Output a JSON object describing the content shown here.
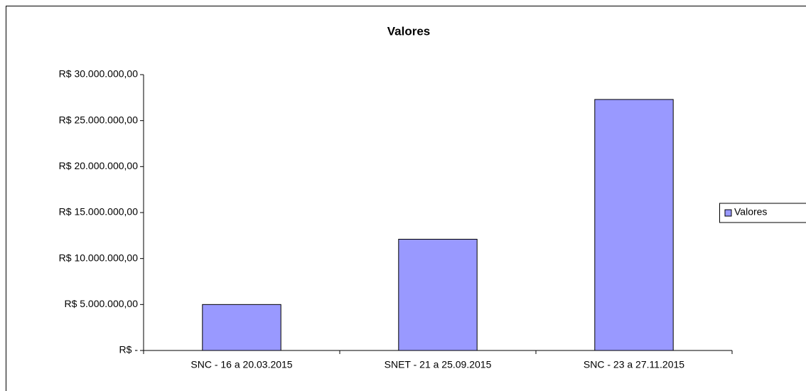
{
  "chart_data": {
    "type": "bar",
    "title": "Valores",
    "categories": [
      "SNC - 16 a 20.03.2015",
      "SNET - 21 a 25.09.2015",
      "SNC - 23 a 27.11.2015"
    ],
    "series": [
      {
        "name": "Valores",
        "color": "#9999ff",
        "values": [
          5000000,
          12100000,
          27300000
        ]
      }
    ],
    "ylim": [
      0,
      30000000
    ],
    "yticks": [
      {
        "value": 0,
        "label": "R$ -"
      },
      {
        "value": 5000000,
        "label": "R$ 5.000.000,00"
      },
      {
        "value": 10000000,
        "label": "R$ 10.000.000,00"
      },
      {
        "value": 15000000,
        "label": "R$ 15.000.000,00"
      },
      {
        "value": 20000000,
        "label": "R$ 20.000.000,00"
      },
      {
        "value": 25000000,
        "label": "R$ 25.000.000,00"
      },
      {
        "value": 30000000,
        "label": "R$ 30.000.000,00"
      }
    ],
    "grid": false,
    "legend": "right"
  }
}
